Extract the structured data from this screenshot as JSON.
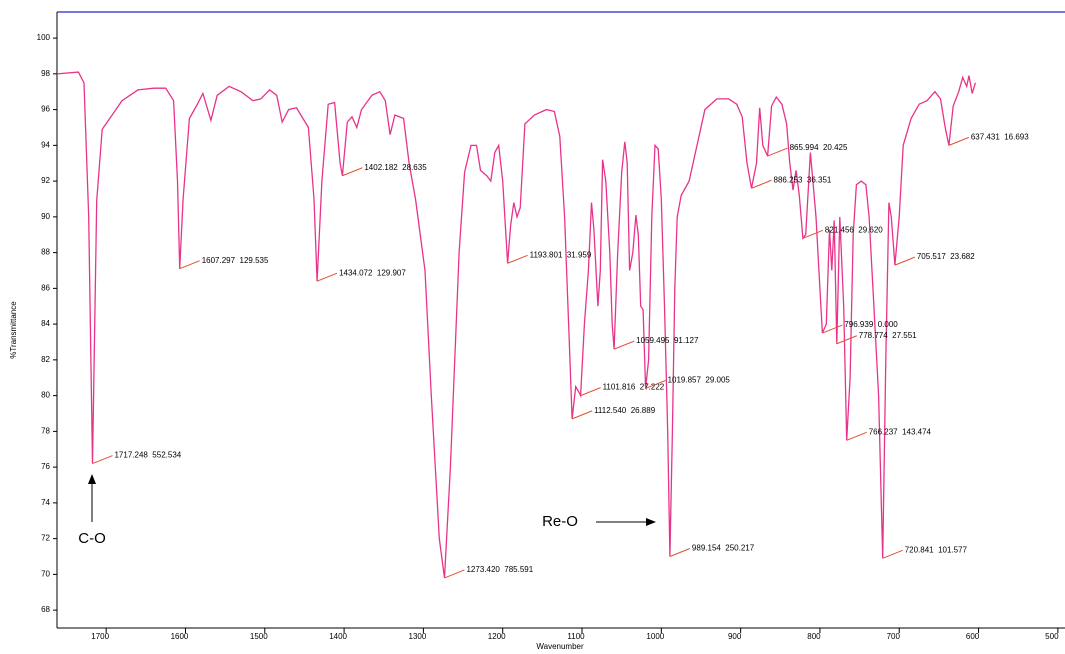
{
  "chart_data": {
    "type": "line",
    "x_label": "Wavenumber",
    "y_label": "%Transmittance",
    "color": "#e8338a",
    "xlim": [
      1762,
      491
    ],
    "ylim": [
      67,
      101.46
    ],
    "xticks": [
      1700,
      1600,
      1500,
      1400,
      1300,
      1200,
      1100,
      1000,
      900,
      800,
      700,
      600,
      500
    ],
    "yticks": [
      68,
      70,
      72,
      74,
      76,
      78,
      80,
      82,
      84,
      86,
      88,
      90,
      92,
      94,
      96,
      98,
      100
    ],
    "x": [
      1762,
      1735,
      1728,
      1722,
      1717.248,
      1712,
      1705,
      1697,
      1680,
      1660,
      1640,
      1625,
      1615,
      1610,
      1607.297,
      1603,
      1595,
      1585,
      1578,
      1568,
      1560,
      1545,
      1530,
      1515,
      1505,
      1494,
      1485,
      1478,
      1470,
      1460,
      1445,
      1438,
      1434.072,
      1428,
      1420,
      1412,
      1405,
      1402.182,
      1396,
      1390,
      1384,
      1378,
      1365,
      1355,
      1348,
      1342,
      1336,
      1325,
      1318,
      1310,
      1298,
      1290,
      1280,
      1273.42,
      1266,
      1255,
      1248,
      1240,
      1233,
      1228,
      1220,
      1215,
      1210,
      1205,
      1200,
      1196,
      1193.801,
      1190,
      1186,
      1182,
      1178,
      1172,
      1160,
      1145,
      1135,
      1128,
      1122,
      1116,
      1112.54,
      1108,
      1104,
      1101.816,
      1097,
      1092,
      1088,
      1085,
      1080,
      1077,
      1074,
      1070,
      1065,
      1062,
      1059.495,
      1055,
      1050,
      1046,
      1043,
      1040,
      1036,
      1032,
      1029,
      1026,
      1023,
      1019.857,
      1016,
      1012,
      1008,
      1004,
      1000,
      996,
      992,
      989.154,
      986,
      983,
      980,
      975,
      965,
      955,
      945,
      930,
      915,
      905,
      898,
      892,
      886.253,
      880,
      876,
      872,
      865.994,
      861,
      855,
      848,
      842,
      838,
      834,
      830,
      826,
      821.456,
      818,
      812,
      805,
      800,
      796.939,
      792,
      788,
      785,
      782,
      778.774,
      775,
      770,
      766.237,
      762,
      758,
      754,
      748,
      742,
      738,
      732,
      726,
      720.841,
      717,
      713,
      710,
      705.517,
      700,
      695,
      685,
      675,
      665,
      655,
      648,
      642,
      637.431,
      632,
      625,
      620,
      615,
      612,
      608,
      604
    ],
    "values": [
      98.0,
      98.1,
      97.5,
      90,
      76.2,
      90.9,
      94.9,
      95.4,
      96.5,
      97.1,
      97.2,
      97.2,
      96.5,
      92,
      87.1,
      91,
      95.5,
      96.3,
      96.9,
      95.4,
      96.8,
      97.3,
      97.0,
      96.5,
      96.6,
      97.1,
      96.8,
      95.3,
      96.0,
      96.1,
      95.0,
      91,
      86.4,
      92,
      96.3,
      96.4,
      93,
      92.3,
      95.3,
      95.6,
      95.0,
      96,
      96.8,
      97.0,
      96.5,
      94.6,
      95.7,
      95.5,
      93,
      91,
      87,
      80,
      72,
      69.8,
      76,
      88,
      92.5,
      94.0,
      94.0,
      92.6,
      92.3,
      92.0,
      93.6,
      94.0,
      92,
      89,
      87.4,
      89.5,
      90.8,
      90.0,
      90.5,
      95.2,
      95.7,
      96.0,
      95.9,
      94.5,
      90,
      83,
      78.7,
      80.5,
      80.2,
      80.0,
      84,
      87,
      90.8,
      89.3,
      85,
      87,
      93.2,
      92,
      88,
      84,
      82.6,
      88,
      92.5,
      94.2,
      93,
      87,
      88,
      90.1,
      89,
      85,
      84.8,
      80.4,
      82,
      90,
      94.0,
      93.8,
      91,
      85,
      78,
      71.0,
      78,
      86,
      90,
      91.2,
      92,
      94,
      96,
      96.6,
      96.6,
      96.3,
      95.6,
      93,
      91.6,
      93,
      96.1,
      94,
      93.4,
      96.2,
      96.7,
      96.3,
      95.2,
      93,
      91.5,
      92.6,
      91.2,
      88.8,
      89,
      93.6,
      90,
      86,
      83.5,
      84,
      89.3,
      87,
      89.8,
      82.9,
      90,
      85,
      77.5,
      81,
      89,
      91.8,
      92.0,
      91.8,
      90,
      85,
      80,
      70.9,
      82,
      90.8,
      90,
      87.3,
      90,
      94,
      95.5,
      96.3,
      96.5,
      97.0,
      96.6,
      95.0,
      94.0,
      96.2,
      97.0,
      97.8,
      97.3,
      97.9,
      96.9,
      97.5
    ],
    "peaks": [
      {
        "label": "1717.248  552.534",
        "x": 1717.248,
        "y": 76.2
      },
      {
        "label": "1607.297  129.535",
        "x": 1607.297,
        "y": 87.1
      },
      {
        "label": "1434.072  129.907",
        "x": 1434.072,
        "y": 86.4
      },
      {
        "label": "1402.182  28.635",
        "x": 1402.182,
        "y": 92.3
      },
      {
        "label": "1273.420  785.591",
        "x": 1273.42,
        "y": 69.8
      },
      {
        "label": "1193.801  31.959",
        "x": 1193.801,
        "y": 87.4
      },
      {
        "label": "1112.540  26.889",
        "x": 1112.54,
        "y": 78.7
      },
      {
        "label": "1101.816  27.222",
        "x": 1101.816,
        "y": 80.0
      },
      {
        "label": "1059.495  91.127",
        "x": 1059.495,
        "y": 82.6
      },
      {
        "label": "1019.857  29.005",
        "x": 1019.857,
        "y": 80.4
      },
      {
        "label": "989.154  250.217",
        "x": 989.154,
        "y": 71.0
      },
      {
        "label": "886.253  36.351",
        "x": 886.253,
        "y": 91.6
      },
      {
        "label": "865.994  20.425",
        "x": 865.994,
        "y": 93.4
      },
      {
        "label": "821.456  29.620",
        "x": 821.456,
        "y": 88.8
      },
      {
        "label": "796.939  0.000",
        "x": 796.939,
        "y": 83.5
      },
      {
        "label": "778.774  27.551",
        "x": 778.774,
        "y": 82.9
      },
      {
        "label": "766.237  143.474",
        "x": 766.237,
        "y": 77.5
      },
      {
        "label": "720.841  101.577",
        "x": 720.841,
        "y": 70.9
      },
      {
        "label": "705.517  23.682",
        "x": 705.517,
        "y": 87.3
      },
      {
        "label": "637.431  16.693",
        "x": 637.431,
        "y": 94.0
      }
    ],
    "callouts": [
      "C-O",
      "Re-O"
    ]
  }
}
